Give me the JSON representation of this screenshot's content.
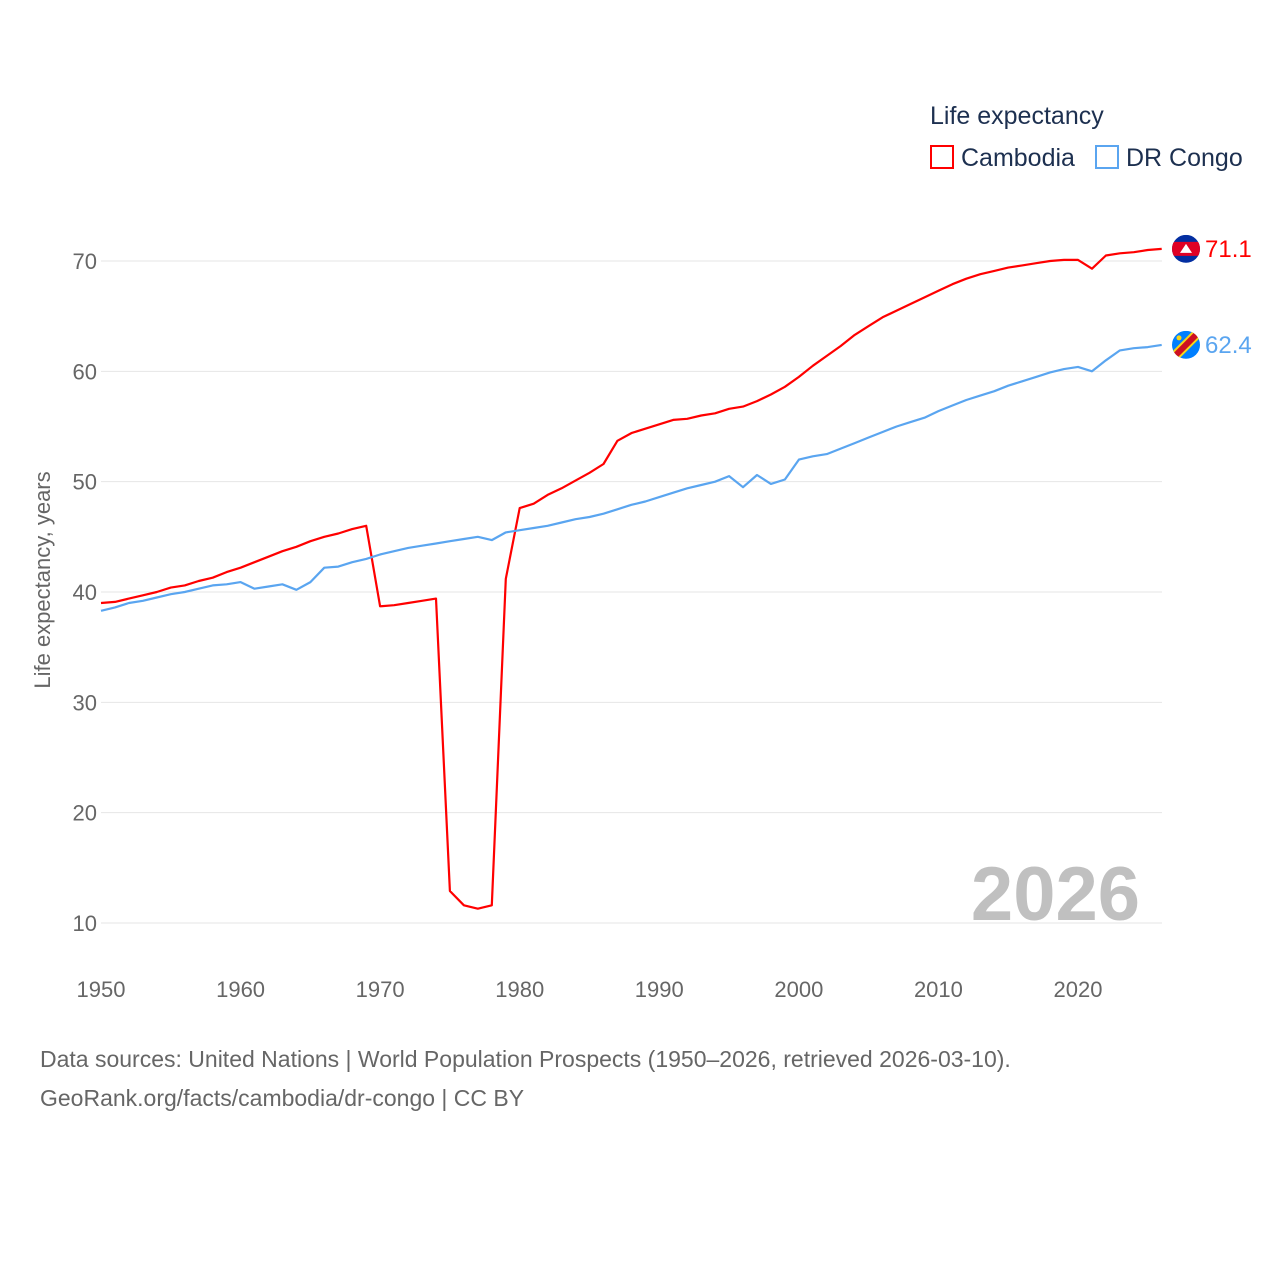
{
  "chart_data": {
    "type": "line",
    "title": "",
    "legend_title": "Life expectancy",
    "legend_position": "top-right",
    "xlabel": "",
    "ylabel": "Life expectancy, years",
    "xlim": [
      1950,
      2026
    ],
    "ylim": [
      5,
      75
    ],
    "x_ticks": [
      1950,
      1960,
      1970,
      1980,
      1990,
      2000,
      2010,
      2020
    ],
    "y_ticks": [
      10,
      20,
      30,
      40,
      50,
      60,
      70
    ],
    "grid": true,
    "year_watermark": "2026",
    "x_start": 1950,
    "series": [
      {
        "name": "Cambodia",
        "color": "#ff0000",
        "end_label": "71.1",
        "values": [
          39.0,
          39.1,
          39.4,
          39.7,
          40.0,
          40.4,
          40.6,
          41.0,
          41.3,
          41.8,
          42.2,
          42.7,
          43.2,
          43.7,
          44.1,
          44.6,
          45.0,
          45.3,
          45.7,
          46.0,
          38.7,
          38.8,
          39.0,
          39.2,
          39.4,
          12.9,
          11.6,
          11.3,
          11.6,
          41.2,
          47.6,
          48.0,
          48.8,
          49.4,
          50.1,
          50.8,
          51.6,
          53.7,
          54.4,
          54.8,
          55.2,
          55.6,
          55.7,
          56.0,
          56.2,
          56.6,
          56.8,
          57.3,
          57.9,
          58.6,
          59.5,
          60.5,
          61.4,
          62.3,
          63.3,
          64.1,
          64.9,
          65.5,
          66.1,
          66.7,
          67.3,
          67.9,
          68.4,
          68.8,
          69.1,
          69.4,
          69.6,
          69.8,
          70.0,
          70.1,
          70.1,
          69.3,
          70.5,
          70.7,
          70.8,
          71.0,
          71.1
        ]
      },
      {
        "name": "DR Congo",
        "color": "#5aa5f0",
        "end_label": "62.4",
        "values": [
          38.3,
          38.6,
          39.0,
          39.2,
          39.5,
          39.8,
          40.0,
          40.3,
          40.6,
          40.7,
          40.9,
          40.3,
          40.5,
          40.7,
          40.2,
          40.9,
          42.2,
          42.3,
          42.7,
          43.0,
          43.4,
          43.7,
          44.0,
          44.2,
          44.4,
          44.6,
          44.8,
          45.0,
          44.7,
          45.4,
          45.6,
          45.8,
          46.0,
          46.3,
          46.6,
          46.8,
          47.1,
          47.5,
          47.9,
          48.2,
          48.6,
          49.0,
          49.4,
          49.7,
          50.0,
          50.5,
          49.5,
          50.6,
          49.8,
          50.2,
          52.0,
          52.3,
          52.5,
          53.0,
          53.5,
          54.0,
          54.5,
          55.0,
          55.4,
          55.8,
          56.4,
          56.9,
          57.4,
          57.8,
          58.2,
          58.7,
          59.1,
          59.5,
          59.9,
          60.2,
          60.4,
          60.0,
          61.0,
          61.9,
          62.1,
          62.2,
          62.4
        ]
      }
    ]
  },
  "footer": {
    "line1": "Data sources: United Nations | World Population Prospects (1950–2026, retrieved 2026-03-10).",
    "line2": "GeoRank.org/facts/cambodia/dr-congo | CC BY"
  }
}
